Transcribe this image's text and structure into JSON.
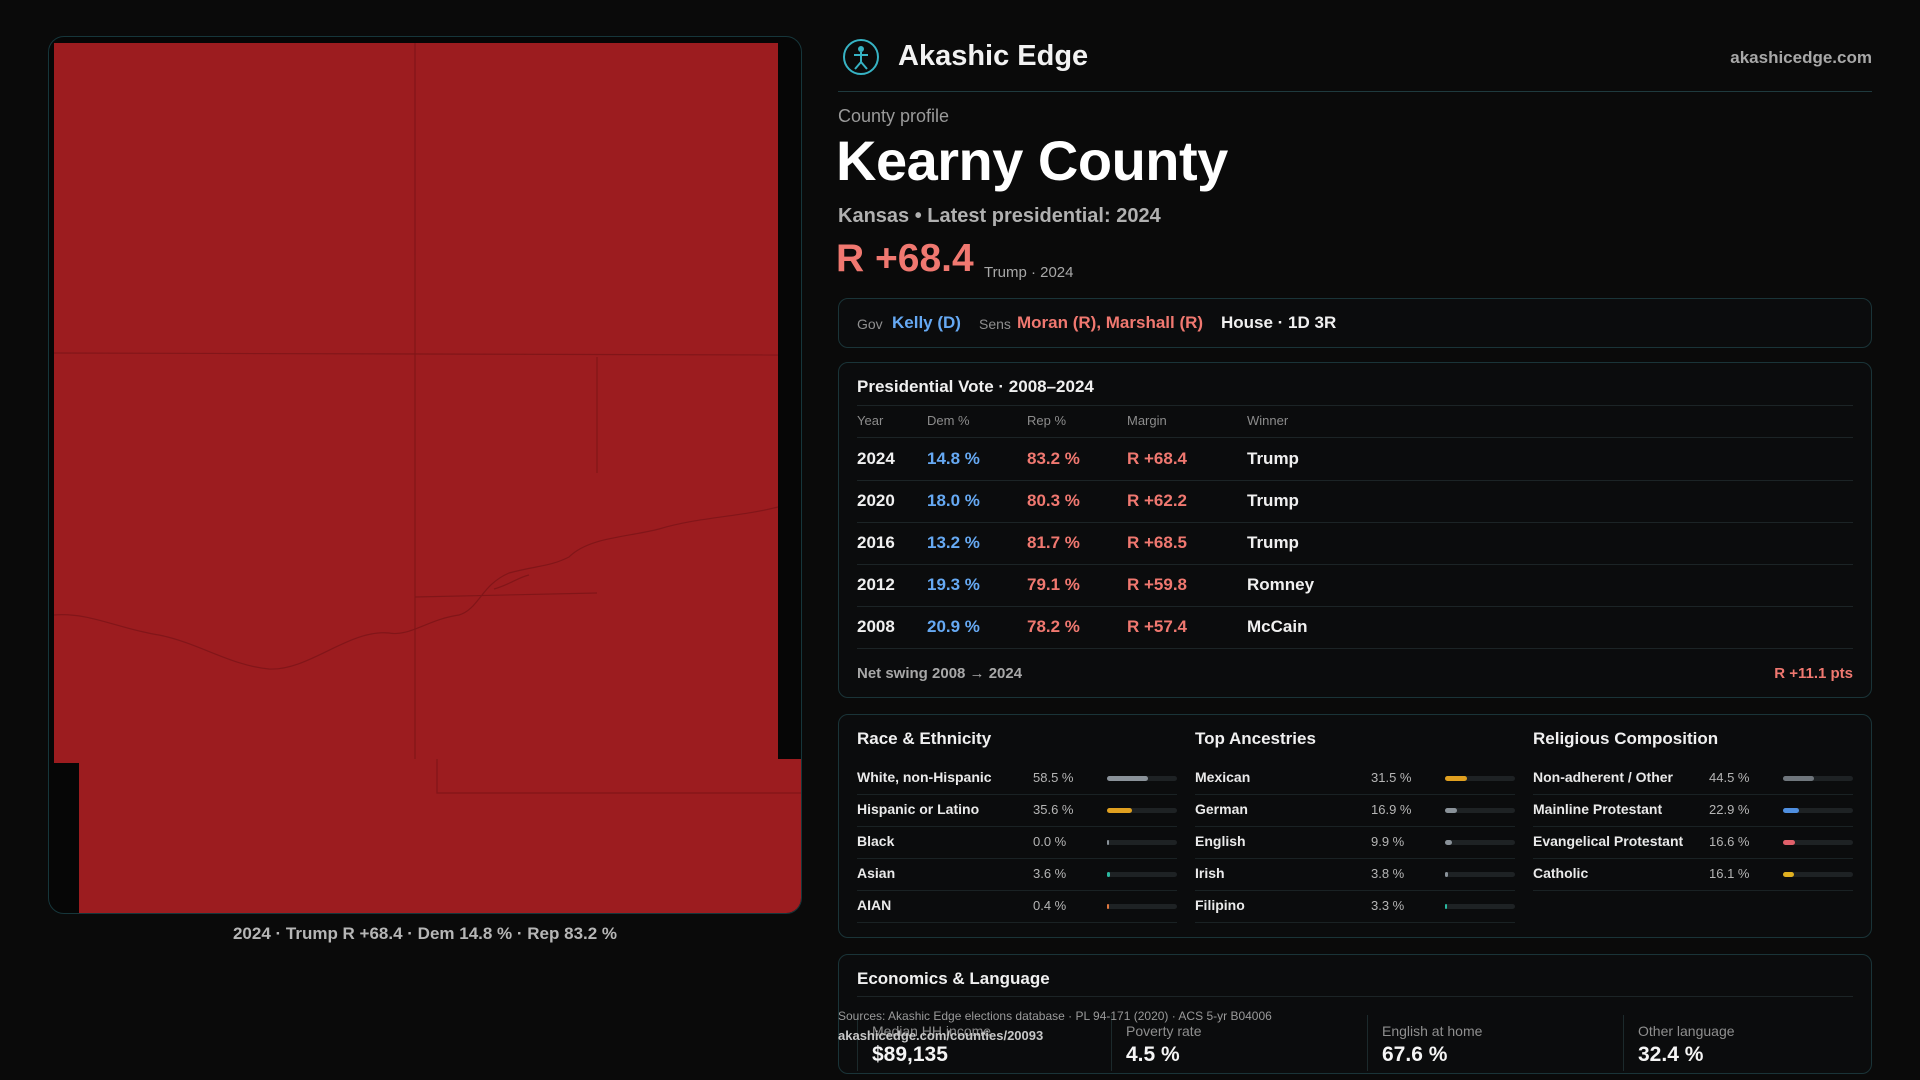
{
  "header": {
    "brand": "Akashic Edge",
    "site": "akashicedge.com"
  },
  "profile": {
    "label": "County profile",
    "county": "Kearny County",
    "subtitle": "Kansas • Latest presidential: 2024",
    "margin": "R +68.4",
    "margin_note": "Trump · 2024"
  },
  "officials": {
    "gov_label": "Gov",
    "gov": "Kelly (D)",
    "sens_label": "Sens",
    "sens": "Moran (R), Marshall (R)",
    "house": "House · 1D 3R"
  },
  "presidential": {
    "title": "Presidential Vote · 2008–2024",
    "headers": [
      "Year",
      "Dem %",
      "Rep %",
      "Margin",
      "Winner"
    ],
    "rows": [
      {
        "year": "2024",
        "dem": "14.8 %",
        "rep": "83.2 %",
        "margin": "R +68.4",
        "winner": "Trump"
      },
      {
        "year": "2020",
        "dem": "18.0 %",
        "rep": "80.3 %",
        "margin": "R +62.2",
        "winner": "Trump"
      },
      {
        "year": "2016",
        "dem": "13.2 %",
        "rep": "81.7 %",
        "margin": "R +68.5",
        "winner": "Trump"
      },
      {
        "year": "2012",
        "dem": "19.3 %",
        "rep": "79.1 %",
        "margin": "R +59.8",
        "winner": "Romney"
      },
      {
        "year": "2008",
        "dem": "20.9 %",
        "rep": "78.2 %",
        "margin": "R +57.4",
        "winner": "McCain"
      }
    ],
    "swing_label": "Net swing 2008 → 2024",
    "swing_value": "R +11.1 pts"
  },
  "demographics": [
    {
      "title": "Race & Ethnicity",
      "items": [
        {
          "label": "White, non-Hispanic",
          "value": "58.5 %",
          "pct": 58.5,
          "color": "#8a9299"
        },
        {
          "label": "Hispanic or Latino",
          "value": "35.6 %",
          "pct": 35.6,
          "color": "#e0a020"
        },
        {
          "label": "Black",
          "value": "0.0 %",
          "pct": 0.0,
          "color": "#8a9299"
        },
        {
          "label": "Asian",
          "value": "3.6 %",
          "pct": 3.6,
          "color": "#2bb8a0"
        },
        {
          "label": "AIAN",
          "value": "0.4 %",
          "pct": 0.4,
          "color": "#e07840"
        }
      ]
    },
    {
      "title": "Top Ancestries",
      "items": [
        {
          "label": "Mexican",
          "value": "31.5 %",
          "pct": 31.5,
          "color": "#e0a020"
        },
        {
          "label": "German",
          "value": "16.9 %",
          "pct": 16.9,
          "color": "#8a9299"
        },
        {
          "label": "English",
          "value": "9.9 %",
          "pct": 9.9,
          "color": "#8a9299"
        },
        {
          "label": "Irish",
          "value": "3.8 %",
          "pct": 3.8,
          "color": "#8a9299"
        },
        {
          "label": "Filipino",
          "value": "3.3 %",
          "pct": 3.3,
          "color": "#2bb8a0"
        }
      ]
    },
    {
      "title": "Religious Composition",
      "items": [
        {
          "label": "Non-adherent / Other",
          "value": "44.5 %",
          "pct": 44.5,
          "color": "#6f767c"
        },
        {
          "label": "Mainline Protestant",
          "value": "22.9 %",
          "pct": 22.9,
          "color": "#4f8fe0"
        },
        {
          "label": "Evangelical Protestant",
          "value": "16.6 %",
          "pct": 16.6,
          "color": "#e0606a"
        },
        {
          "label": "Catholic",
          "value": "16.1 %",
          "pct": 16.1,
          "color": "#e0b020"
        }
      ]
    }
  ],
  "economics": {
    "title": "Economics & Language",
    "items": [
      {
        "label": "Median HH income",
        "value": "$89,135"
      },
      {
        "label": "Poverty rate",
        "value": "4.5 %"
      },
      {
        "label": "English at home",
        "value": "67.6 %"
      },
      {
        "label": "Other language",
        "value": "32.4 %"
      }
    ]
  },
  "sources": {
    "text": "Sources: Akashic Edge elections database · PL 94-171 (2020) · ACS 5-yr B04006",
    "url": "akashicedge.com/counties/20093"
  },
  "map": {
    "caption": "2024 · Trump R +68.4 · Dem 14.8 % · Rep 83.2 %",
    "fill_color": "#9c1c1f"
  }
}
